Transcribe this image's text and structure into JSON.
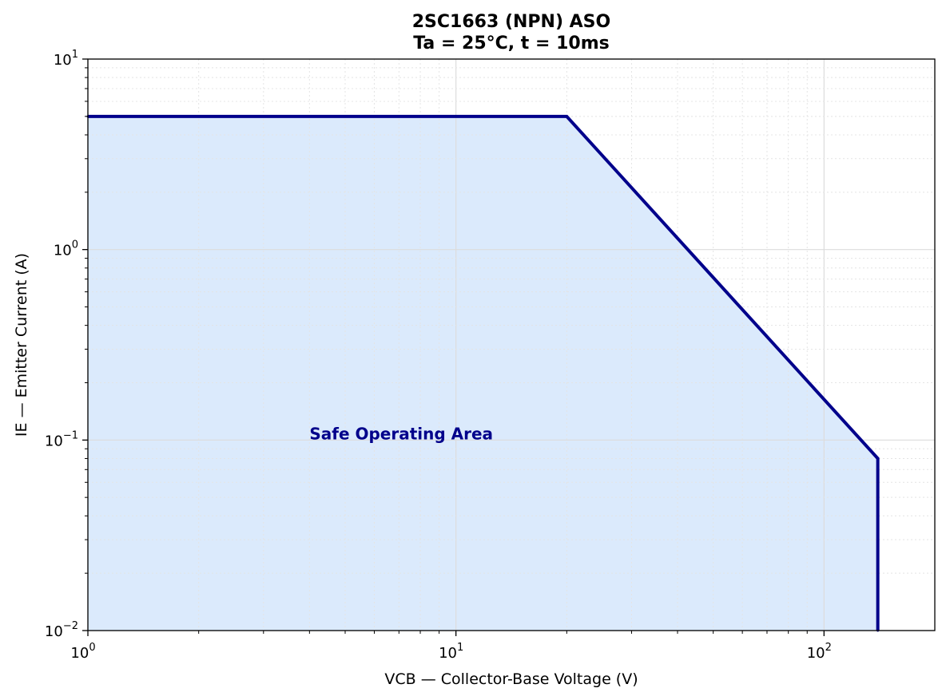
{
  "chart_data": {
    "type": "line",
    "title": "2SC1663 (NPN) ASO",
    "subtitle": "Ta = 25°C, t = 10ms",
    "xlabel": "VCB — Collector-Base Voltage (V)",
    "ylabel": "IE — Emitter Current (A)",
    "xscale": "log",
    "yscale": "log",
    "xlim": [
      1,
      200
    ],
    "ylim": [
      0.01,
      10
    ],
    "grid": true,
    "x_ticks": [
      {
        "value": 1,
        "base": "10",
        "exp": "0"
      },
      {
        "value": 10,
        "base": "10",
        "exp": "1"
      },
      {
        "value": 100,
        "base": "10",
        "exp": "2"
      }
    ],
    "y_ticks": [
      {
        "value": 0.01,
        "base": "10",
        "exp": "−2"
      },
      {
        "value": 0.1,
        "base": "10",
        "exp": "−1"
      },
      {
        "value": 1,
        "base": "10",
        "exp": "0"
      },
      {
        "value": 10,
        "base": "10",
        "exp": "1"
      }
    ],
    "series": [
      {
        "x": [
          1,
          20,
          140,
          140
        ],
        "y": [
          5,
          5,
          0.08,
          0.01
        ],
        "color": "#00008b",
        "fill": "#dbeafc"
      }
    ],
    "annotations": [
      {
        "text": "Safe Operating Area",
        "x": 4,
        "y": 0.1,
        "color": "#00008b"
      }
    ]
  }
}
